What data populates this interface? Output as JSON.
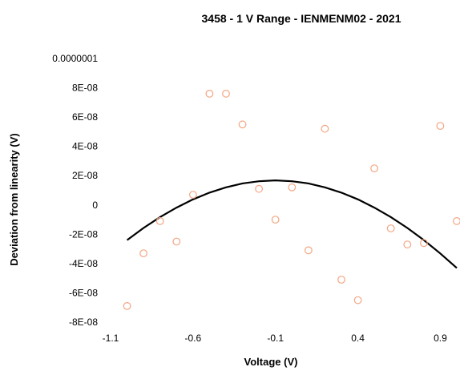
{
  "chart_data": {
    "type": "scatter",
    "title": "3458 - 1 V Range - IENMENM02  - 2021",
    "xlabel": "Voltage (V)",
    "ylabel": "Deviation from linearity (V)",
    "xlim": [
      -1.1,
      1.0
    ],
    "ylim": [
      -8e-08,
      1e-07
    ],
    "x_ticks": [
      -1.1,
      -0.6,
      -0.1,
      0.4,
      0.9
    ],
    "x_tick_labels": [
      "-1.1",
      "-0.6",
      "-0.1",
      "0.4",
      "0.9"
    ],
    "y_ticks": [
      -8e-08,
      -6e-08,
      -4e-08,
      -2e-08,
      0,
      2e-08,
      4e-08,
      6e-08,
      8e-08,
      1e-07
    ],
    "y_tick_labels": [
      "-8E-08",
      "-6E-08",
      "-4E-08",
      "-2E-08",
      "0",
      "2E-08",
      "4E-08",
      "6E-08",
      "8E-08",
      "0.0000001"
    ],
    "grid": false,
    "legend": "none",
    "marker_color": "#F4A582",
    "trendline_color": "#000000",
    "series": [
      {
        "kind": "points",
        "points": [
          {
            "x": -1.0,
            "y": -6.9e-08
          },
          {
            "x": -0.9,
            "y": -3.3e-08
          },
          {
            "x": -0.8,
            "y": -1.1e-08
          },
          {
            "x": -0.7,
            "y": -2.5e-08
          },
          {
            "x": -0.6,
            "y": 7e-09
          },
          {
            "x": -0.5,
            "y": 7.6e-08
          },
          {
            "x": -0.4,
            "y": 7.6e-08
          },
          {
            "x": -0.3,
            "y": 5.5e-08
          },
          {
            "x": -0.2,
            "y": 1.1e-08
          },
          {
            "x": -0.1,
            "y": -1e-08
          },
          {
            "x": 0.0,
            "y": 1.2e-08
          },
          {
            "x": 0.1,
            "y": -3.1e-08
          },
          {
            "x": 0.2,
            "y": 5.2e-08
          },
          {
            "x": 0.3,
            "y": -5.1e-08
          },
          {
            "x": 0.4,
            "y": -6.5e-08
          },
          {
            "x": 0.5,
            "y": 2.5e-08
          },
          {
            "x": 0.6,
            "y": -1.6e-08
          },
          {
            "x": 0.7,
            "y": -2.7e-08
          },
          {
            "x": 0.8,
            "y": -2.6e-08
          },
          {
            "x": 0.9,
            "y": 5.4e-08
          },
          {
            "x": 1.0,
            "y": -1.1e-08
          }
        ]
      },
      {
        "kind": "trendline",
        "x": [
          -1.0,
          -0.9,
          -0.8,
          -0.7,
          -0.6,
          -0.5,
          -0.4,
          -0.3,
          -0.2,
          -0.1,
          0.0,
          0.1,
          0.2,
          0.3,
          0.4,
          0.5,
          0.6,
          0.7,
          0.8,
          0.9,
          1.0
        ],
        "y": [
          -2.4e-08,
          -1.57e-08,
          -8.3e-09,
          -1.8e-09,
          3.8e-09,
          8.4e-09,
          1.2e-08,
          1.47e-08,
          1.62e-08,
          1.68e-08,
          1.62e-08,
          1.47e-08,
          1.2e-08,
          8.4e-09,
          3.8e-09,
          -1.8e-09,
          -8.3e-09,
          -1.57e-08,
          -2.4e-08,
          -3.31e-08,
          -4.3e-08
        ]
      }
    ]
  }
}
